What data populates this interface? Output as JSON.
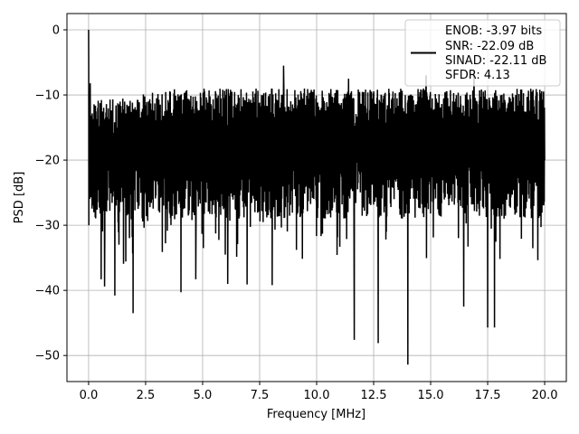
{
  "chart_data": {
    "type": "line",
    "xlabel": "Frequency [MHz]",
    "ylabel": "PSD [dB]",
    "xlim": [
      -0.95,
      20.95
    ],
    "ylim": [
      -54,
      2.5
    ],
    "xticks": [
      0.0,
      2.5,
      5.0,
      7.5,
      10.0,
      12.5,
      15.0,
      17.5,
      20.0
    ],
    "xtick_labels": [
      "0.0",
      "2.5",
      "5.0",
      "7.5",
      "10.0",
      "12.5",
      "15.0",
      "17.5",
      "20.0"
    ],
    "yticks": [
      0,
      -10,
      -20,
      -30,
      -40,
      -50
    ],
    "ytick_labels": [
      "0",
      "−10",
      "−20",
      "−30",
      "−40",
      "−50"
    ],
    "grid": true,
    "line_color": "#000000",
    "legend": {
      "placement": "top-right",
      "entries": [
        "ENOB: -3.97 bits",
        "SNR: -22.09 dB",
        "SINAD: -22.11 dB",
        "SFDR: 4.13"
      ]
    },
    "series": [
      {
        "x_range": [
          0.0,
          20.0
        ],
        "points": 2000,
        "peak": {
          "x": 0.0,
          "y": 0.0
        },
        "typical_range": [
          -29,
          -10
        ],
        "notable_dips": [
          {
            "x": 0.55,
            "y": -38.3
          },
          {
            "x": 0.7,
            "y": -39.4
          },
          {
            "x": 1.15,
            "y": -40.8
          },
          {
            "x": 1.95,
            "y": -43.5
          },
          {
            "x": 4.05,
            "y": -40.3
          },
          {
            "x": 4.7,
            "y": -38.3
          },
          {
            "x": 6.1,
            "y": -39.0
          },
          {
            "x": 6.95,
            "y": -39.1
          },
          {
            "x": 8.05,
            "y": -39.2
          },
          {
            "x": 11.65,
            "y": -47.6
          },
          {
            "x": 12.7,
            "y": -48.1
          },
          {
            "x": 14.0,
            "y": -51.4
          },
          {
            "x": 16.45,
            "y": -42.5
          },
          {
            "x": 17.5,
            "y": -45.7
          },
          {
            "x": 17.8,
            "y": -45.7
          }
        ],
        "notable_peaks": [
          {
            "x": 0.07,
            "y": -8.2
          },
          {
            "x": 8.55,
            "y": -5.5
          },
          {
            "x": 11.4,
            "y": -7.5
          },
          {
            "x": 14.8,
            "y": -7.0
          },
          {
            "x": 16.9,
            "y": -6.5
          }
        ]
      }
    ]
  }
}
